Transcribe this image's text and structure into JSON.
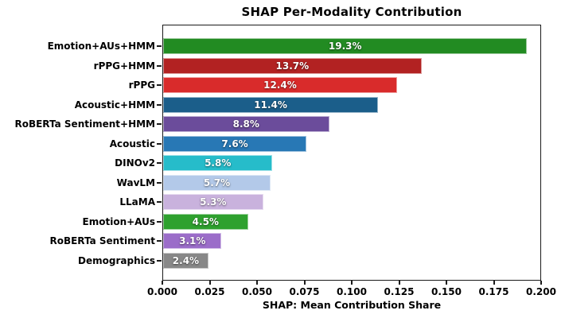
{
  "chart_data": {
    "type": "bar",
    "orientation": "horizontal",
    "title": "SHAP Per-Modality Contribution",
    "xlabel": "SHAP: Mean Contribution Share",
    "xlim": [
      0,
      0.2
    ],
    "x_ticks": [
      "0.000",
      "0.025",
      "0.050",
      "0.075",
      "0.100",
      "0.125",
      "0.150",
      "0.175",
      "0.200"
    ],
    "grid": false,
    "frame": "full-box",
    "legend": "none",
    "categories": [
      "Emotion+AUs+HMM",
      "rPPG+HMM",
      "rPPG",
      "Acoustic+HMM",
      "RoBERTa Sentiment+HMM",
      "Acoustic",
      "DINOv2",
      "WavLM",
      "LLaMA",
      "Emotion+AUs",
      "RoBERTa Sentiment",
      "Demographics"
    ],
    "values": [
      0.193,
      0.137,
      0.124,
      0.114,
      0.088,
      0.076,
      0.058,
      0.057,
      0.053,
      0.045,
      0.031,
      0.024
    ],
    "bar_labels": [
      "19.3%",
      "13.7%",
      "12.4%",
      "11.4%",
      "8.8%",
      "7.6%",
      "5.8%",
      "5.7%",
      "5.3%",
      "4.5%",
      "3.1%",
      "2.4%"
    ],
    "colors": [
      "#228B22",
      "#B22222",
      "#D92B2B",
      "#1B5E8A",
      "#6B4C9B",
      "#2878B5",
      "#26BCCA",
      "#B3C9E9",
      "#C9B2DD",
      "#2EA12E",
      "#9B6DC9",
      "#888888"
    ],
    "bar_label_color": "#FFFFFF",
    "spine_color": "#1A1A1A"
  }
}
